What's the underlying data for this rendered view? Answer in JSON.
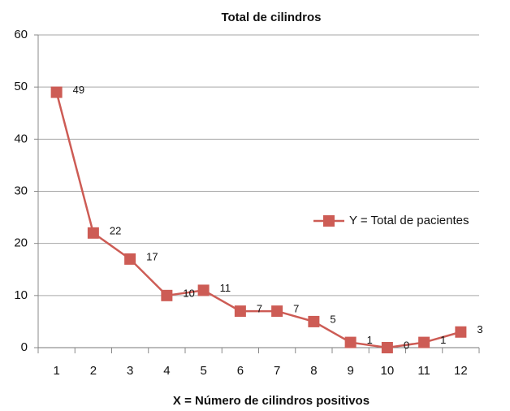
{
  "chart_data": {
    "type": "line",
    "title": "Total de cilindros",
    "x_label": "X = Número de cilindros positivos",
    "categories": [
      "1",
      "2",
      "3",
      "4",
      "5",
      "6",
      "7",
      "8",
      "9",
      "10",
      "11",
      "12"
    ],
    "series": [
      {
        "name": "Y = Total de pacientes",
        "color": "#cd5c55",
        "values": [
          49,
          22,
          17,
          10,
          11,
          7,
          7,
          5,
          1,
          0,
          1,
          3
        ]
      }
    ],
    "ylim": [
      0,
      60
    ],
    "yticks": [
      0,
      10,
      20,
      30,
      40,
      50,
      60
    ],
    "grid": true,
    "legend": "right",
    "data_labels": true
  }
}
